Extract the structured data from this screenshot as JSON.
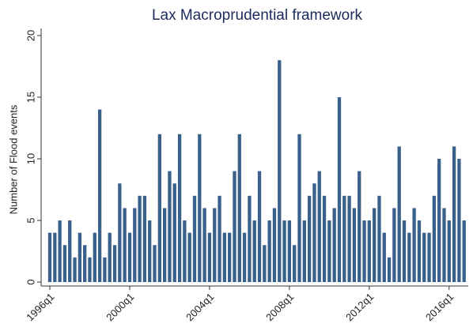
{
  "chart_data": {
    "type": "bar",
    "title": "Lax Macroprudential framework",
    "y_label": "Number of Flood events",
    "categories": [
      "1996q1",
      null,
      null,
      null,
      null,
      null,
      null,
      null,
      null,
      null,
      null,
      null,
      null,
      null,
      null,
      null,
      "2000q1",
      null,
      null,
      null,
      null,
      null,
      null,
      null,
      null,
      null,
      null,
      null,
      null,
      null,
      null,
      null,
      "2004q1",
      null,
      null,
      null,
      null,
      null,
      null,
      null,
      null,
      null,
      null,
      null,
      null,
      null,
      null,
      null,
      "2008q1",
      null,
      null,
      null,
      null,
      null,
      null,
      null,
      null,
      null,
      null,
      null,
      null,
      null,
      null,
      null,
      "2012q1",
      null,
      null,
      null,
      null,
      null,
      null,
      null,
      null,
      null,
      null,
      null,
      null,
      null,
      null,
      null,
      "2016q1",
      null,
      null,
      null
    ],
    "values": [
      4,
      4,
      5,
      3,
      5,
      2,
      4,
      3,
      2,
      4,
      14,
      2,
      4,
      3,
      8,
      6,
      4,
      6,
      7,
      7,
      5,
      3,
      12,
      6,
      9,
      8,
      12,
      5,
      4,
      7,
      12,
      6,
      4,
      6,
      7,
      4,
      4,
      9,
      12,
      4,
      7,
      5,
      9,
      3,
      5,
      6,
      18,
      5,
      5,
      3,
      12,
      5,
      7,
      8,
      9,
      7,
      5,
      6,
      15,
      7,
      7,
      6,
      9,
      5,
      5,
      6,
      7,
      4,
      2,
      6,
      11,
      5,
      4,
      6,
      5,
      4,
      4,
      7,
      10,
      6,
      5,
      11,
      10,
      5
    ],
    "color": "#3a618c",
    "ylim": [
      0,
      20
    ],
    "yticks": [
      0,
      5,
      10,
      15,
      20
    ]
  }
}
